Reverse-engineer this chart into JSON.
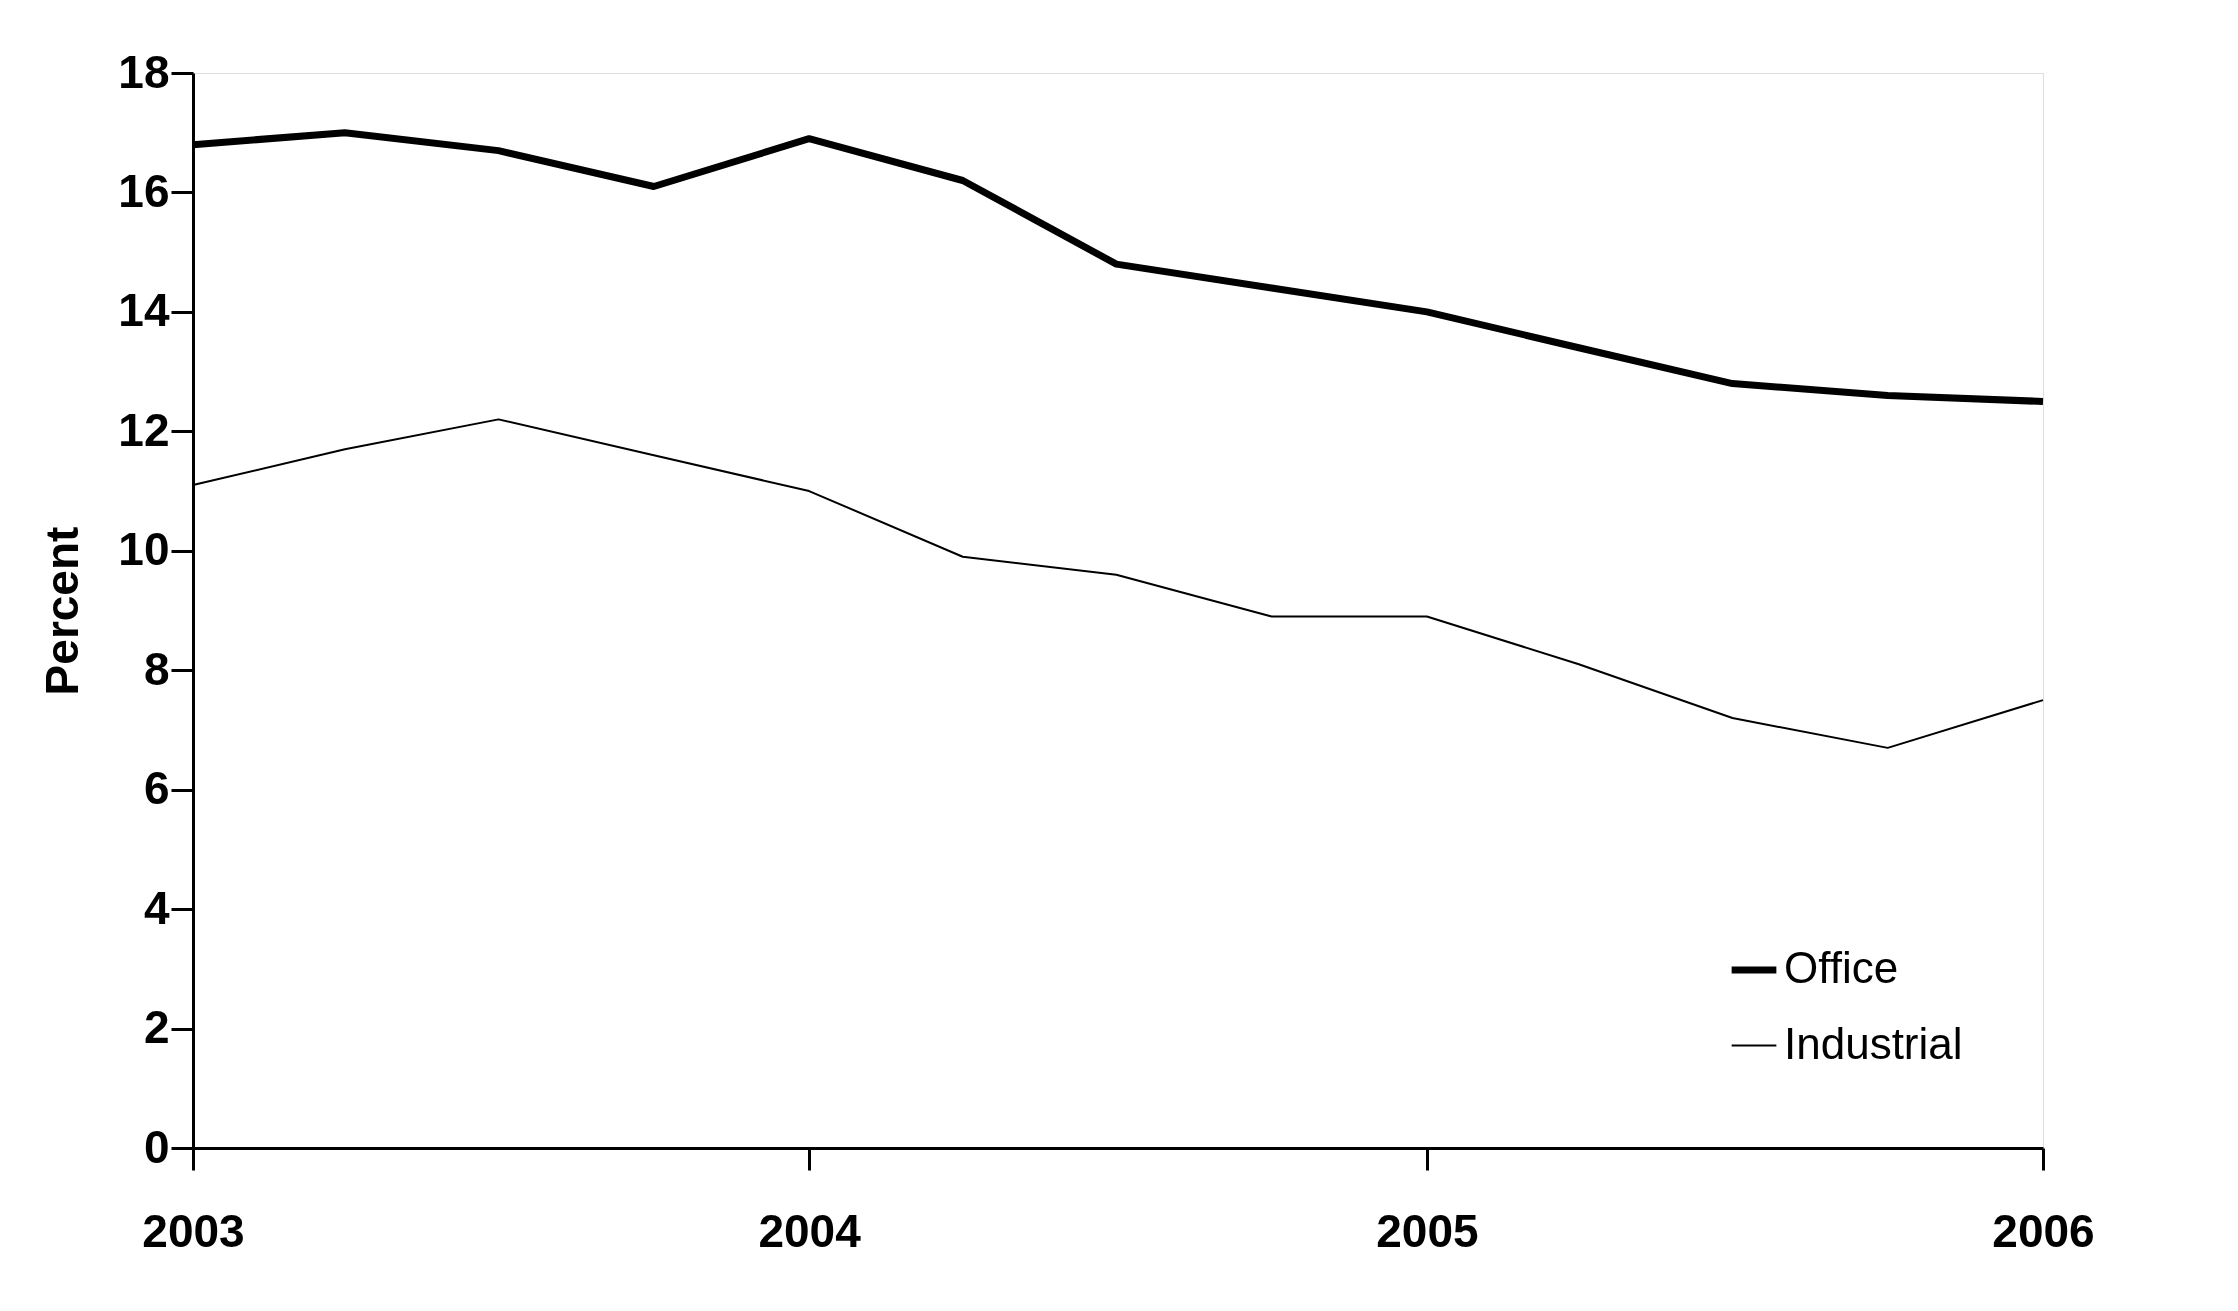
{
  "chart_data": {
    "type": "line",
    "ylabel": "Percent",
    "x": [
      "2003-01",
      "2003-04",
      "2003-07",
      "2003-10",
      "2004-01",
      "2004-04",
      "2004-07",
      "2004-10",
      "2005-01",
      "2005-04",
      "2005-07",
      "2005-10",
      "2006-01"
    ],
    "series": [
      {
        "name": "Office",
        "color": "#000000",
        "values": [
          16.8,
          17.0,
          16.7,
          16.1,
          16.9,
          16.2,
          14.8,
          14.4,
          14.0,
          13.4,
          12.8,
          12.6,
          12.5
        ]
      },
      {
        "name": "Industrial",
        "color": "#000000",
        "values": [
          11.1,
          11.7,
          12.2,
          11.6,
          11.0,
          9.9,
          9.6,
          8.9,
          8.9,
          8.1,
          7.2,
          6.7,
          7.5
        ]
      }
    ],
    "xlim": [
      "2003-01",
      "2006-01"
    ],
    "xticks": [
      {
        "value": "2003-01",
        "label": "2003"
      },
      {
        "value": "2004-01",
        "label": "2004"
      },
      {
        "value": "2005-01",
        "label": "2005"
      },
      {
        "value": "2006-01",
        "label": "2006"
      }
    ],
    "ylim": [
      0,
      18
    ],
    "yticks": [
      0,
      2,
      4,
      6,
      8,
      10,
      12,
      14,
      16,
      18
    ],
    "grid": false,
    "legend": "bottom right",
    "marker": "none",
    "line_style": "solid"
  }
}
